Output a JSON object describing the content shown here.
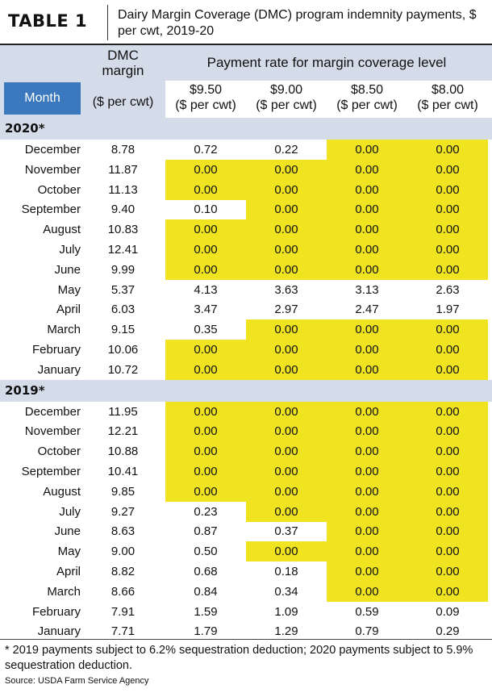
{
  "table_label": "TABLE 1",
  "caption": "Dairy Margin Coverage (DMC) program indemnity payments, $ per cwt, 2019-20",
  "header": {
    "month": "Month",
    "dmc_margin": "DMC margin",
    "dmc_unit": "($ per cwt)",
    "payment_rate": "Payment rate for margin coverage level",
    "levels": [
      {
        "value": "$9.50",
        "unit": "($ per cwt)"
      },
      {
        "value": "$9.00",
        "unit": "($ per cwt)"
      },
      {
        "value": "$8.50",
        "unit": "($ per cwt)"
      },
      {
        "value": "$8.00",
        "unit": "($ per cwt)"
      }
    ]
  },
  "highlight_color": "#f0e421",
  "band_color": "#d4dbe9",
  "month_header_color": "#3b78bd",
  "sections": [
    {
      "label": "2020*",
      "rows": [
        {
          "month": "December",
          "dmc": "8.78",
          "pay": [
            "0.72",
            "0.22",
            "0.00",
            "0.00"
          ],
          "hl": [
            false,
            false,
            true,
            true
          ]
        },
        {
          "month": "November",
          "dmc": "11.87",
          "pay": [
            "0.00",
            "0.00",
            "0.00",
            "0.00"
          ],
          "hl": [
            true,
            true,
            true,
            true
          ]
        },
        {
          "month": "October",
          "dmc": "11.13",
          "pay": [
            "0.00",
            "0.00",
            "0.00",
            "0.00"
          ],
          "hl": [
            true,
            true,
            true,
            true
          ]
        },
        {
          "month": "September",
          "dmc": "9.40",
          "pay": [
            "0.10",
            "0.00",
            "0.00",
            "0.00"
          ],
          "hl": [
            false,
            true,
            true,
            true
          ]
        },
        {
          "month": "August",
          "dmc": "10.83",
          "pay": [
            "0.00",
            "0.00",
            "0.00",
            "0.00"
          ],
          "hl": [
            true,
            true,
            true,
            true
          ]
        },
        {
          "month": "July",
          "dmc": "12.41",
          "pay": [
            "0.00",
            "0.00",
            "0.00",
            "0.00"
          ],
          "hl": [
            true,
            true,
            true,
            true
          ]
        },
        {
          "month": "June",
          "dmc": "9.99",
          "pay": [
            "0.00",
            "0.00",
            "0.00",
            "0.00"
          ],
          "hl": [
            true,
            true,
            true,
            true
          ]
        },
        {
          "month": "May",
          "dmc": "5.37",
          "pay": [
            "4.13",
            "3.63",
            "3.13",
            "2.63"
          ],
          "hl": [
            false,
            false,
            false,
            false
          ]
        },
        {
          "month": "April",
          "dmc": "6.03",
          "pay": [
            "3.47",
            "2.97",
            "2.47",
            "1.97"
          ],
          "hl": [
            false,
            false,
            false,
            false
          ]
        },
        {
          "month": "March",
          "dmc": "9.15",
          "pay": [
            "0.35",
            "0.00",
            "0.00",
            "0.00"
          ],
          "hl": [
            false,
            true,
            true,
            true
          ]
        },
        {
          "month": "February",
          "dmc": "10.06",
          "pay": [
            "0.00",
            "0.00",
            "0.00",
            "0.00"
          ],
          "hl": [
            true,
            true,
            true,
            true
          ]
        },
        {
          "month": "January",
          "dmc": "10.72",
          "pay": [
            "0.00",
            "0.00",
            "0.00",
            "0.00"
          ],
          "hl": [
            true,
            true,
            true,
            true
          ]
        }
      ]
    },
    {
      "label": "2019*",
      "rows": [
        {
          "month": "December",
          "dmc": "11.95",
          "pay": [
            "0.00",
            "0.00",
            "0.00",
            "0.00"
          ],
          "hl": [
            true,
            true,
            true,
            true
          ]
        },
        {
          "month": "November",
          "dmc": "12.21",
          "pay": [
            "0.00",
            "0.00",
            "0.00",
            "0.00"
          ],
          "hl": [
            true,
            true,
            true,
            true
          ]
        },
        {
          "month": "October",
          "dmc": "10.88",
          "pay": [
            "0.00",
            "0.00",
            "0.00",
            "0.00"
          ],
          "hl": [
            true,
            true,
            true,
            true
          ]
        },
        {
          "month": "September",
          "dmc": "10.41",
          "pay": [
            "0.00",
            "0.00",
            "0.00",
            "0.00"
          ],
          "hl": [
            true,
            true,
            true,
            true
          ]
        },
        {
          "month": "August",
          "dmc": "9.85",
          "pay": [
            "0.00",
            "0.00",
            "0.00",
            "0.00"
          ],
          "hl": [
            true,
            true,
            true,
            true
          ]
        },
        {
          "month": "July",
          "dmc": "9.27",
          "pay": [
            "0.23",
            "0.00",
            "0.00",
            "0.00"
          ],
          "hl": [
            false,
            true,
            true,
            true
          ]
        },
        {
          "month": "June",
          "dmc": "8.63",
          "pay": [
            "0.87",
            "0.37",
            "0.00",
            "0.00"
          ],
          "hl": [
            false,
            false,
            true,
            true
          ]
        },
        {
          "month": "May",
          "dmc": "9.00",
          "pay": [
            "0.50",
            "0.00",
            "0.00",
            "0.00"
          ],
          "hl": [
            false,
            true,
            true,
            true
          ]
        },
        {
          "month": "April",
          "dmc": "8.82",
          "pay": [
            "0.68",
            "0.18",
            "0.00",
            "0.00"
          ],
          "hl": [
            false,
            false,
            true,
            true
          ]
        },
        {
          "month": "March",
          "dmc": "8.66",
          "pay": [
            "0.84",
            "0.34",
            "0.00",
            "0.00"
          ],
          "hl": [
            false,
            false,
            true,
            true
          ]
        },
        {
          "month": "February",
          "dmc": "7.91",
          "pay": [
            "1.59",
            "1.09",
            "0.59",
            "0.09"
          ],
          "hl": [
            false,
            false,
            false,
            false
          ]
        },
        {
          "month": "January",
          "dmc": "7.71",
          "pay": [
            "1.79",
            "1.29",
            "0.79",
            "0.29"
          ],
          "hl": [
            false,
            false,
            false,
            false
          ]
        }
      ]
    }
  ],
  "footnote": "* 2019 payments subject to 6.2% sequestration deduction; 2020 payments subject to 5.9% sequestration deduction.",
  "source": "Source: USDA Farm Service Agency"
}
